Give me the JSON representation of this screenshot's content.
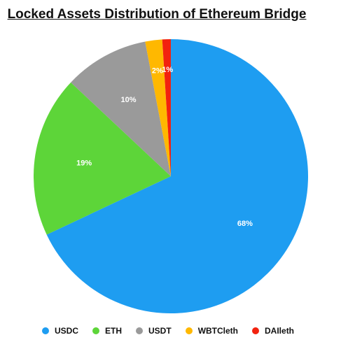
{
  "chart_data": {
    "type": "pie",
    "title": "Locked Assets Distribution of Ethereum Bridge",
    "slices": [
      {
        "label": "USDC",
        "value": 68,
        "display": "68%",
        "color": "#1e9df1"
      },
      {
        "label": "ETH",
        "value": 19,
        "display": "19%",
        "color": "#5dd539"
      },
      {
        "label": "USDT",
        "value": 10,
        "display": "10%",
        "color": "#9a9a9a"
      },
      {
        "label": "WBTCleth",
        "value": 2,
        "display": "2%",
        "color": "#ffb800"
      },
      {
        "label": "DAIleth",
        "value": 1,
        "display": "1%",
        "color": "#f2220f"
      }
    ],
    "start": "12 o'clock, clockwise",
    "legend_position": "bottom"
  }
}
